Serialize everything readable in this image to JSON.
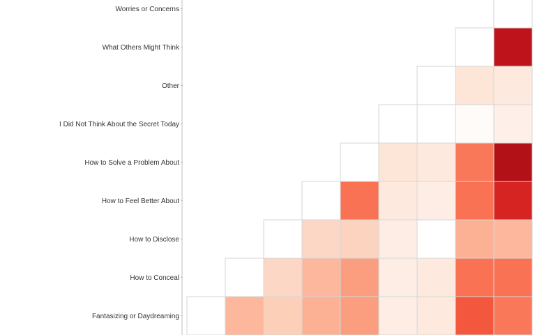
{
  "chart_data": {
    "type": "heatmap",
    "title": "",
    "xlabel": "",
    "ylabel": "",
    "rows": [
      "Worries or Concerns",
      "What Others Might Think",
      "Other",
      "I Did Not Think About the Secret Today",
      "How to Solve a Problem About",
      "How to Feel Better About",
      "How to Disclose",
      "How to Conceal",
      "Fantasizing or Daydreaming"
    ],
    "colors": {
      "low": "#ffffff",
      "high": "#a50f15",
      "grid": "#d6d6d6",
      "axis": "#bfbfbf"
    },
    "values": [
      [
        null,
        null,
        null,
        null,
        null,
        null,
        null,
        null,
        0.0
      ],
      [
        null,
        null,
        null,
        null,
        null,
        null,
        null,
        0.0,
        0.88
      ],
      [
        null,
        null,
        null,
        null,
        null,
        null,
        0.0,
        0.12,
        0.1
      ],
      [
        null,
        null,
        null,
        null,
        null,
        0.0,
        0.0,
        0.02,
        0.07
      ],
      [
        null,
        null,
        null,
        null,
        0.0,
        0.12,
        0.1,
        0.5,
        0.93
      ],
      [
        null,
        null,
        null,
        0.0,
        0.52,
        0.1,
        0.08,
        0.52,
        0.78
      ],
      [
        null,
        null,
        0.0,
        0.18,
        0.2,
        0.08,
        0.0,
        0.32,
        0.3
      ],
      [
        null,
        0.0,
        0.18,
        0.3,
        0.38,
        0.08,
        0.1,
        0.52,
        0.52
      ],
      [
        0.0,
        0.3,
        0.22,
        0.32,
        0.38,
        0.08,
        0.1,
        0.6,
        0.5
      ]
    ]
  }
}
